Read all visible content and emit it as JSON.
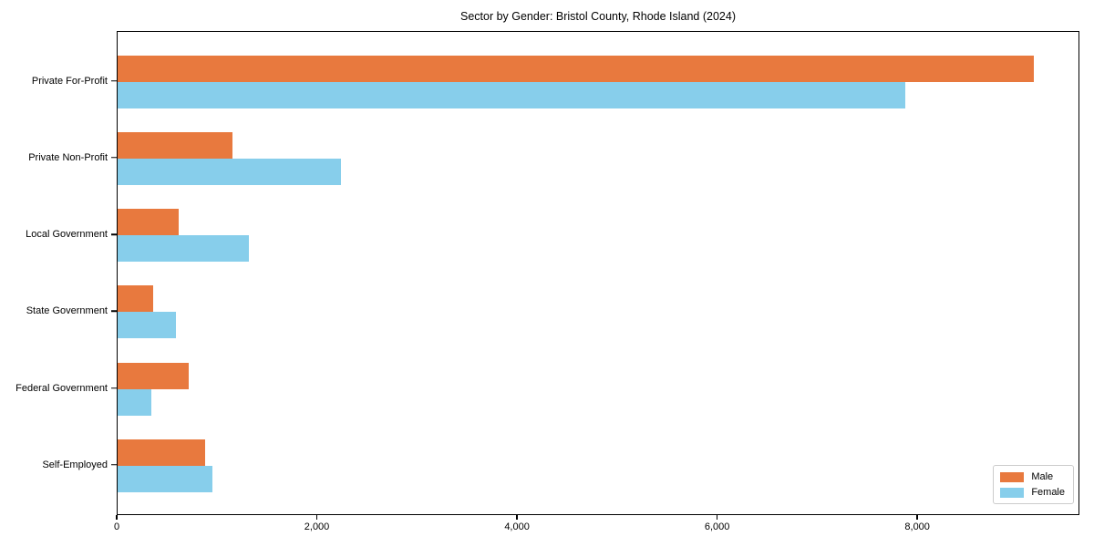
{
  "chart_data": {
    "type": "bar",
    "orientation": "horizontal",
    "title": "Sector by Gender: Bristol County, Rhode Island (2024)",
    "categories": [
      "Private For-Profit",
      "Private Non-Profit",
      "Local Government",
      "State Government",
      "Federal Government",
      "Self-Employed"
    ],
    "series": [
      {
        "name": "Male",
        "color": "#e8793e",
        "values": [
          9170,
          1150,
          610,
          355,
          710,
          880
        ]
      },
      {
        "name": "Female",
        "color": "#87ceeb",
        "values": [
          7890,
          2240,
          1310,
          580,
          335,
          950
        ]
      }
    ],
    "xlim": [
      0,
      9620
    ],
    "xticks": [
      0,
      2000,
      4000,
      6000,
      8000
    ],
    "xtick_labels": [
      "0",
      "2,000",
      "4,000",
      "6,000",
      "8,000"
    ],
    "legend": {
      "position": "lower-right"
    },
    "grid": false,
    "colors": {
      "spine": "#000000",
      "background": "#ffffff",
      "legend_border": "#cccccc"
    }
  }
}
